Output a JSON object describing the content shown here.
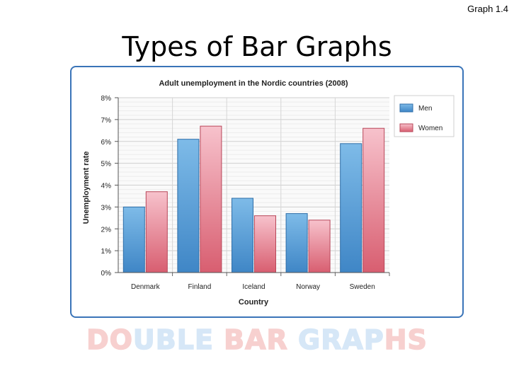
{
  "header": {
    "graph_tag": "Graph 1.4",
    "title": "Types of Bar Graphs"
  },
  "footer": {
    "parts": [
      {
        "text": "DO",
        "color": "red"
      },
      {
        "text": "UB",
        "color": "blue"
      },
      {
        "text": "LE",
        "color": "blue"
      },
      {
        "text": " BAR ",
        "color": "red"
      },
      {
        "text": "GRAP",
        "color": "blue"
      },
      {
        "text": "H",
        "color": "red"
      },
      {
        "text": "S",
        "color": "red"
      }
    ]
  },
  "colors": {
    "frame": "#3a74b8",
    "men": "#5fa5dd",
    "women": "#e58f9d"
  },
  "chart_data": {
    "type": "bar",
    "title": "Adult unemployment in the Nordic countries (2008)",
    "xlabel": "Country",
    "ylabel": "Unemployment rate",
    "categories": [
      "Denmark",
      "Finland",
      "Iceland",
      "Norway",
      "Sweden"
    ],
    "series": [
      {
        "name": "Men",
        "values": [
          3.0,
          6.1,
          3.4,
          2.7,
          5.9
        ]
      },
      {
        "name": "Women",
        "values": [
          3.7,
          6.7,
          2.6,
          2.4,
          6.6
        ]
      }
    ],
    "ylim": [
      0,
      8
    ],
    "yticks": [
      "0%",
      "1%",
      "2%",
      "3%",
      "4%",
      "5%",
      "6%",
      "7%",
      "8%"
    ],
    "legend_position": "top-right",
    "grid": true
  }
}
